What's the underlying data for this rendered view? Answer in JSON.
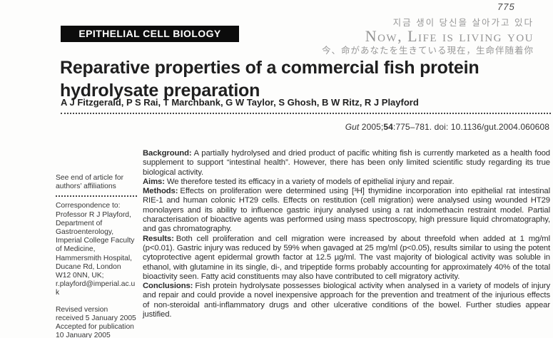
{
  "page": {
    "number": "775"
  },
  "watermark": {
    "korean": "지금 생이 당신을 살아가고 있다",
    "english": "Now, Life is living you",
    "cjk": "今、命があなたを生きている現在，生命伴随着你"
  },
  "header": {
    "section_banner": "EPITHELIAL CELL BIOLOGY"
  },
  "article": {
    "title_lines": [
      "Reparative properties of a commercial fish protein",
      "hydrolysate preparation"
    ],
    "authors": "A J Fitzgerald, P S Rai, T Marchbank, G W Taylor, S Ghosh, B W Ritz, R J Playford",
    "citation": {
      "journal": "Gut",
      "pre_volume": " 2005;",
      "volume": "54",
      "post_volume": ":775–781. doi: 10.1136/gut.2004.060608"
    }
  },
  "sidebar": {
    "affiliation_note": "See end of article for authors’ affiliations",
    "correspondence_label": "Correspondence to:",
    "correspondence_body": "Professor R J Playford, Department of Gastroenterology, Imperial College Faculty of Medicine, Hammersmith Hospital, Ducane Rd, London W12 0NN, UK; r.playford@imperial.ac.uk",
    "revised": "Revised version received 5 January 2005",
    "accepted": "Accepted for publication 10 January 2005"
  },
  "abstract": {
    "sections": [
      {
        "label": "Background:",
        "text": "A partially hydrolysed and dried product of pacific whiting fish is currently marketed as a health food supplement to support “intestinal health”. However, there has been only limited scientific study regarding its true biological activity."
      },
      {
        "label": "Aims:",
        "text": "We therefore tested its efficacy in a variety of models of epithelial injury and repair."
      },
      {
        "label": "Methods:",
        "text": "Effects on proliferation were determined using [³H] thymidine incorporation into epithelial rat intestinal RIE-1 and human colonic HT29 cells. Effects on restitution (cell migration) were analysed using wounded HT29 monolayers and its ability to influence gastric injury analysed using a rat indomethacin restraint model. Partial characterisation of bioactive agents was performed using mass spectroscopy, high pressure liquid chromatography, and gas chromatography."
      },
      {
        "label": "Results:",
        "text": "Both cell proliferation and cell migration were increased by about threefold when added at 1 mg/ml (p<0.01). Gastric injury was reduced by 59% when gavaged at 25 mg/ml (p<0.05), results similar to using the potent cytoprotective agent epidermal growth factor at 12.5 µg/ml. The vast majority of biological activity was soluble in ethanol, with glutamine in its single, di-, and tripeptide forms probably accounting for approximately 40% of the total bioactivity seen. Fatty acid constituents may also have contributed to cell migratory activity."
      },
      {
        "label": "Conclusions:",
        "text": "Fish protein hydrolysate possesses biological activity when analysed in a variety of models of injury and repair and could provide a novel inexpensive approach for the prevention and treatment of the injurious effects of non-steroidal anti-inflammatory drugs and other ulcerative conditions of the bowel. Further studies appear justified."
      }
    ]
  }
}
